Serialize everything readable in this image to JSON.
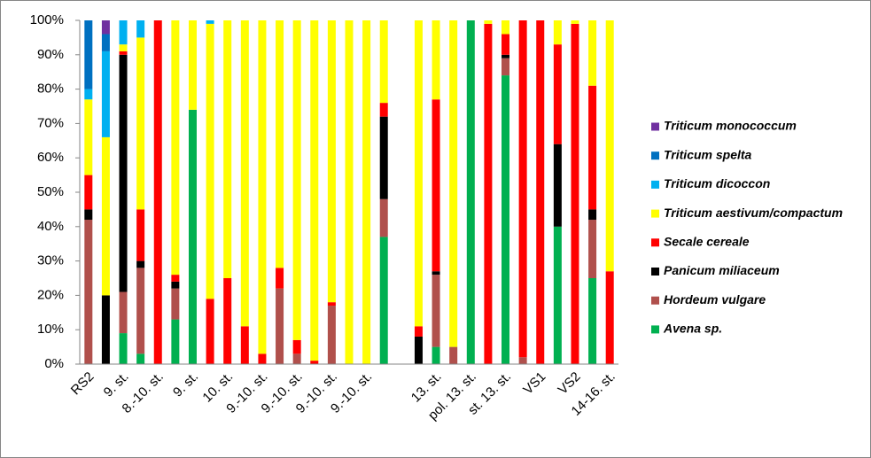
{
  "chart_data": {
    "type": "stacked_bar",
    "categories": [
      "RS2",
      null,
      "9. st.",
      null,
      "8.-10. st.",
      null,
      "9. st.",
      null,
      "10. st.",
      null,
      "9.-10. st.",
      null,
      "9.-10. st.",
      null,
      "9.-10. st.",
      null,
      "9.-10. st.",
      null,
      null,
      null,
      "13. st.",
      null,
      "pol. 13. st.",
      null,
      "st. 13. st.",
      null,
      "VS1",
      null,
      "VS2",
      null,
      "14-16. st."
    ],
    "series": [
      {
        "name": "Avena sp.",
        "color": "#00b050",
        "values": [
          0,
          0,
          9,
          3,
          0,
          13,
          74,
          0,
          0,
          0,
          0,
          0,
          0,
          0,
          0,
          0,
          0,
          37,
          0,
          0,
          5,
          0,
          100,
          0,
          84,
          0,
          0,
          40,
          0,
          25,
          0
        ]
      },
      {
        "name": "Hordeum vulgare",
        "color": "#b0504c",
        "values": [
          42,
          0,
          12,
          25,
          0,
          9,
          0,
          0,
          0,
          0,
          0,
          22,
          3,
          0,
          17,
          0,
          0,
          11,
          0,
          0,
          21,
          5,
          0,
          0,
          5,
          2,
          0,
          0,
          0,
          17,
          0
        ]
      },
      {
        "name": "Panicum miliaceum",
        "color": "#000000",
        "values": [
          3,
          20,
          69,
          2,
          0,
          2,
          0,
          0,
          0,
          0,
          0,
          0,
          0,
          0,
          0,
          0,
          0,
          24,
          0,
          8,
          1,
          0,
          0,
          0,
          1,
          0,
          0,
          24,
          0,
          3,
          0
        ]
      },
      {
        "name": "Secale cereale",
        "color": "#ff0000",
        "values": [
          10,
          0,
          1,
          15,
          100,
          2,
          0,
          19,
          25,
          11,
          3,
          6,
          4,
          1,
          1,
          0,
          0,
          4,
          0,
          3,
          50,
          0,
          0,
          99,
          6,
          98,
          100,
          29,
          99,
          36,
          27
        ]
      },
      {
        "name": "Triticum aestivum/compactum",
        "color": "#ffff00",
        "values": [
          22,
          46,
          2,
          50,
          0,
          74,
          26,
          80,
          75,
          89,
          97,
          72,
          93,
          99,
          82,
          100,
          100,
          24,
          0,
          89,
          23,
          95,
          0,
          1,
          4,
          0,
          0,
          7,
          1,
          19,
          73
        ]
      },
      {
        "name": "Triticum dicoccon",
        "color": "#00b0f0",
        "values": [
          3,
          25,
          7,
          5,
          0,
          0,
          0,
          1,
          0,
          0,
          0,
          0,
          0,
          0,
          0,
          0,
          0,
          0,
          0,
          0,
          0,
          0,
          0,
          0,
          0,
          0,
          0,
          0,
          0,
          0,
          0
        ]
      },
      {
        "name": "Triticum spelta",
        "color": "#0070c0",
        "values": [
          20,
          5,
          0,
          0,
          0,
          0,
          0,
          0,
          0,
          0,
          0,
          0,
          0,
          0,
          0,
          0,
          0,
          0,
          0,
          0,
          0,
          0,
          0,
          0,
          0,
          0,
          0,
          0,
          0,
          0,
          0
        ]
      },
      {
        "name": "Triticum monococcum",
        "color": "#7030a0",
        "values": [
          0,
          4,
          0,
          0,
          0,
          0,
          0,
          0,
          0,
          0,
          0,
          0,
          0,
          0,
          0,
          0,
          0,
          0,
          0,
          0,
          0,
          0,
          0,
          0,
          0,
          0,
          0,
          0,
          0,
          0,
          0
        ]
      }
    ],
    "ylim": [
      0,
      100
    ],
    "yticks": [
      {
        "value": 0,
        "label": "0%"
      },
      {
        "value": 10,
        "label": "10%"
      },
      {
        "value": 20,
        "label": "20%"
      },
      {
        "value": 30,
        "label": "30%"
      },
      {
        "value": 40,
        "label": "40%"
      },
      {
        "value": 50,
        "label": "50%"
      },
      {
        "value": 60,
        "label": "60%"
      },
      {
        "value": 70,
        "label": "70%"
      },
      {
        "value": 80,
        "label": "80%"
      },
      {
        "value": 90,
        "label": "90%"
      },
      {
        "value": 100,
        "label": "100%"
      }
    ],
    "grid": false,
    "legend": "right"
  }
}
